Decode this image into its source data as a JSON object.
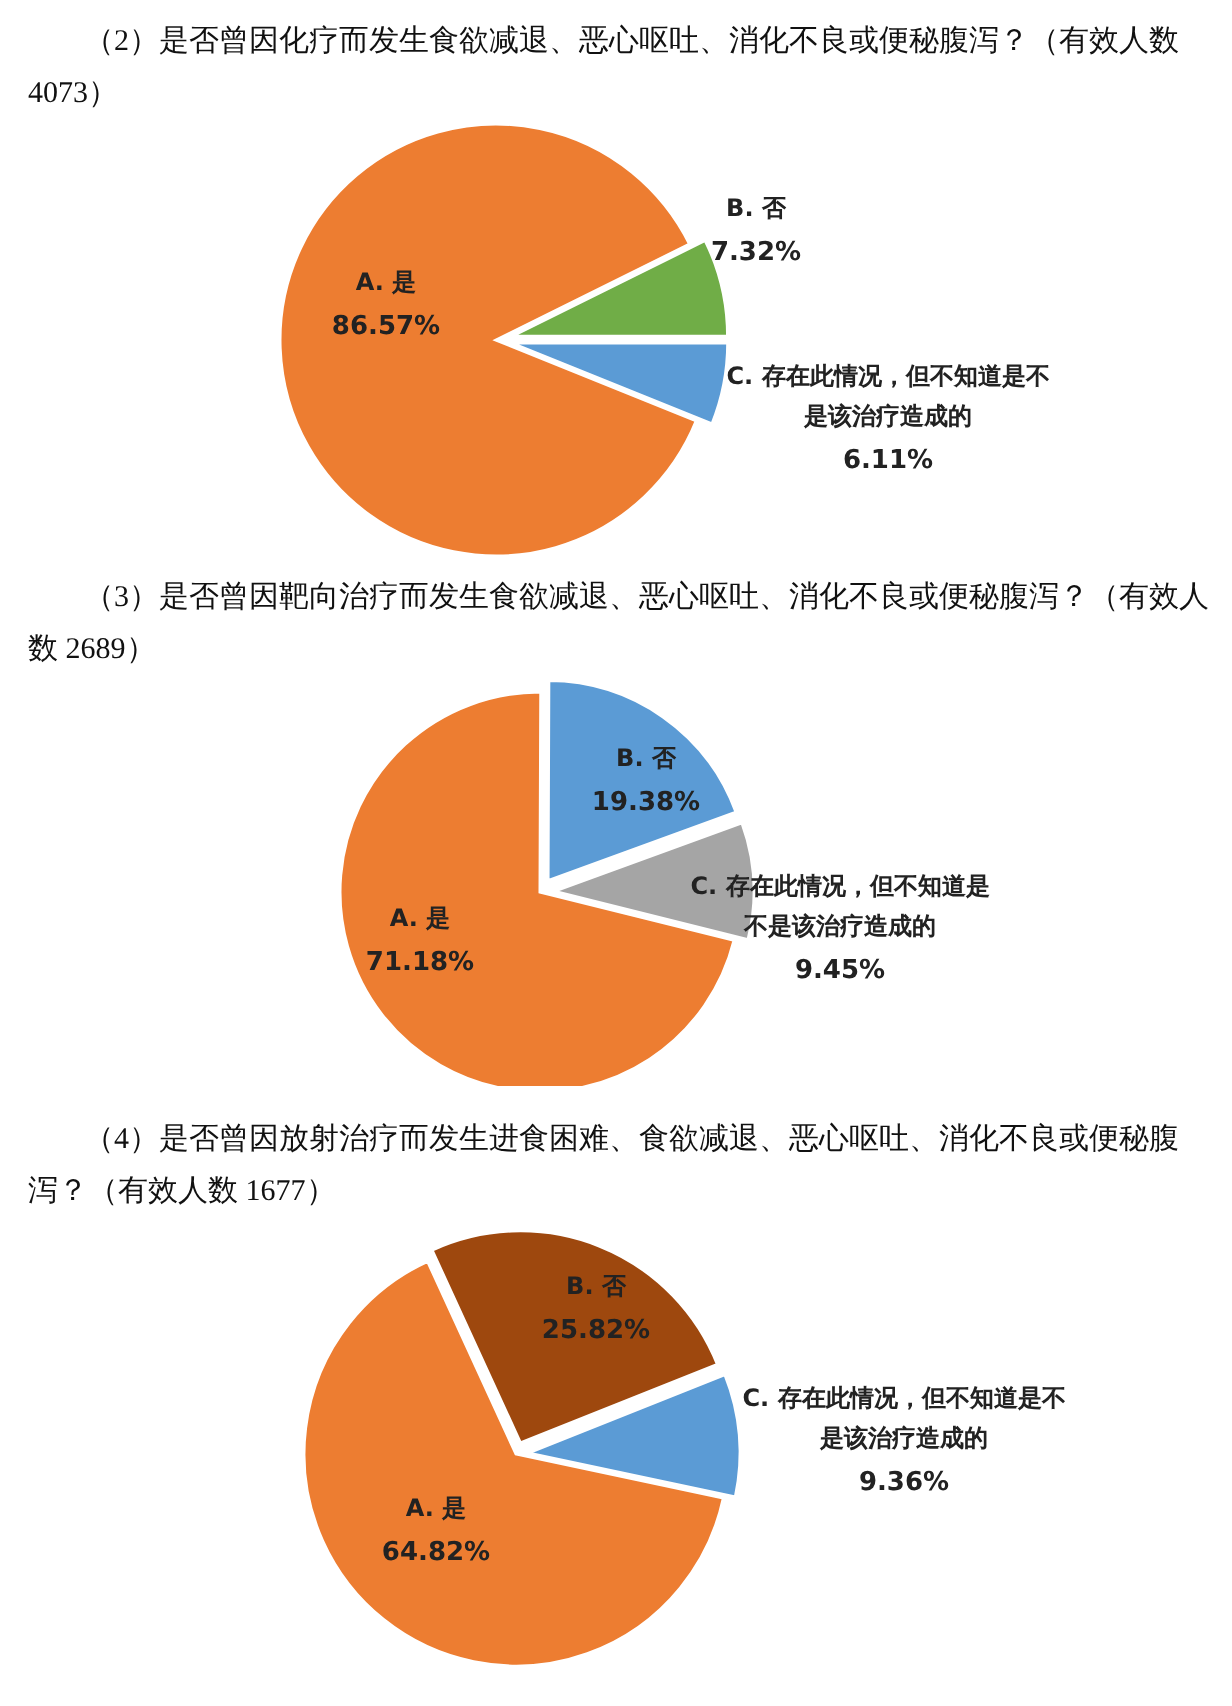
{
  "chart_data": [
    {
      "type": "pie",
      "title": "（2）是否曾因化疗而发生食欲减退、恶心呕吐、消化不良或便秘腹泻？（有效人数 4073）",
      "categories": [
        "A. 是",
        "B. 否",
        "C. 存在此情况，但不知道是不是该治疗造成的"
      ],
      "values": [
        86.57,
        7.32,
        6.11
      ],
      "value_labels": [
        "86.57%",
        "7.32%",
        "6.11%"
      ],
      "colors": [
        "#ed7d31",
        "#70ad47",
        "#5b9bd5"
      ]
    },
    {
      "type": "pie",
      "title": "（3）是否曾因靶向治疗而发生食欲减退、恶心呕吐、消化不良或便秘腹泻？（有效人数 2689）",
      "categories": [
        "A. 是",
        "B. 否",
        "C. 存在此情况，但不知道是不是该治疗造成的"
      ],
      "values": [
        71.18,
        19.38,
        9.45
      ],
      "value_labels": [
        "71.18%",
        "19.38%",
        "9.45%"
      ],
      "colors": [
        "#ed7d31",
        "#5b9bd5",
        "#a5a5a5"
      ]
    },
    {
      "type": "pie",
      "title": "（4）是否曾因放射治疗而发生进食困难、食欲减退、恶心呕吐、消化不良或便秘腹泻？（有效人数 1677）",
      "categories": [
        "A. 是",
        "B. 否",
        "C. 存在此情况，但不知道是不是该治疗造成的"
      ],
      "values": [
        64.82,
        25.82,
        9.36
      ],
      "value_labels": [
        "64.82%",
        "25.82%",
        "9.36%"
      ],
      "colors": [
        "#ed7d31",
        "#9e480e",
        "#5b9bd5"
      ]
    }
  ]
}
